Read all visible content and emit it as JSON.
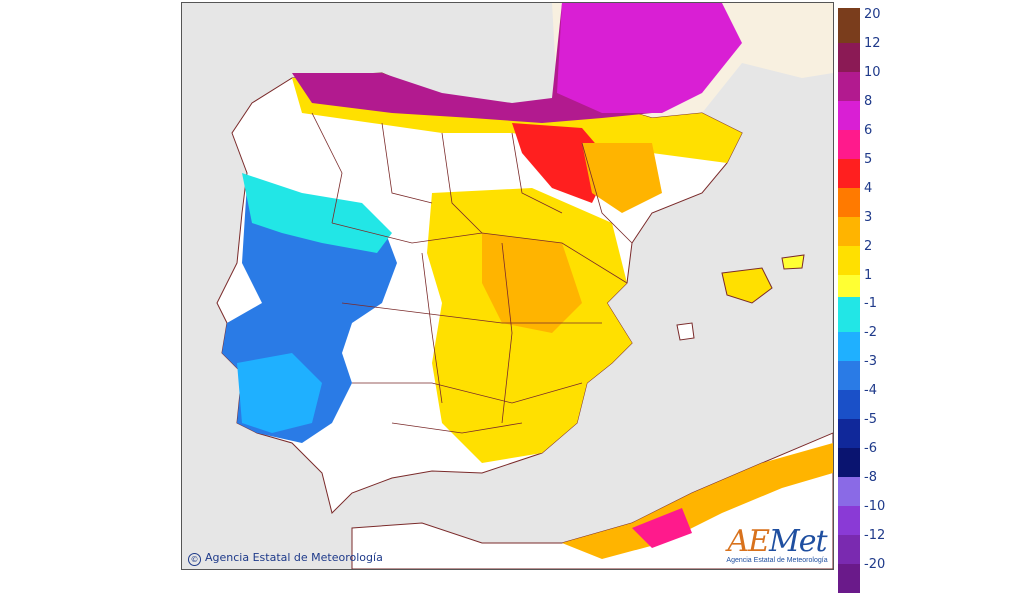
{
  "map": {
    "copyright_text": "Agencia Estatal de Meteorología",
    "logo_mark_a": "AE",
    "logo_mark_b": "Met",
    "logo_subtitle": "Agencia Estatal de Meteorología",
    "background_color": "#e6e6e6",
    "land_base_color": "#ffffff",
    "border_color": "#7a2a2a"
  },
  "legend": {
    "warm": [
      {
        "label": "20",
        "color": "#7a3d1c"
      },
      {
        "label": "12",
        "color": "#8b1a55"
      },
      {
        "label": "10",
        "color": "#b21a8f"
      },
      {
        "label": "8",
        "color": "#d91fd4"
      },
      {
        "label": "6",
        "color": "#ff1a8c"
      },
      {
        "label": "5",
        "color": "#ff1f1f"
      },
      {
        "label": "4",
        "color": "#ff7a00"
      },
      {
        "label": "3",
        "color": "#ffb400"
      },
      {
        "label": "2",
        "color": "#ffe000"
      },
      {
        "label": "1",
        "color": "#ffff33"
      }
    ],
    "cold": [
      {
        "label": "-1",
        "color": "#22e6e6"
      },
      {
        "label": "-2",
        "color": "#1fb0ff"
      },
      {
        "label": "-3",
        "color": "#2a7be6"
      },
      {
        "label": "-4",
        "color": "#1a50c8"
      },
      {
        "label": "-5",
        "color": "#10289a"
      },
      {
        "label": "-6",
        "color": "#0a1470"
      },
      {
        "label": "-8",
        "color": "#8a6ae6"
      },
      {
        "label": "-10",
        "color": "#8a3ad6"
      },
      {
        "label": "-12",
        "color": "#7a2ab0"
      },
      {
        "label": "-20",
        "color": "#6a1a8a"
      }
    ]
  }
}
